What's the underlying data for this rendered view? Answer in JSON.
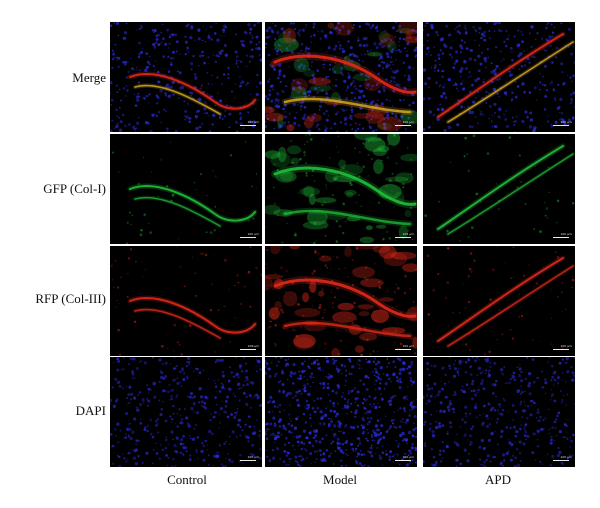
{
  "rows": [
    {
      "label": "Merge"
    },
    {
      "label": "GFP (Col-I)"
    },
    {
      "label": "RFP (Col-III)"
    },
    {
      "label": "DAPI"
    }
  ],
  "columns": [
    {
      "label": "Control"
    },
    {
      "label": "Model"
    },
    {
      "label": "APD"
    }
  ],
  "scale_bar": "100 μm",
  "colors": {
    "dapi": "#2b2bd6",
    "gfp": "#1fbf3a",
    "rfp": "#e02a1a",
    "merge_overlap": "#e0b020",
    "background": "#000000"
  }
}
